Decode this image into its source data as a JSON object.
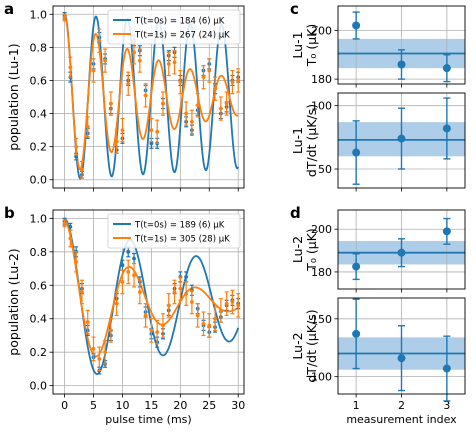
{
  "chart_data": [
    {
      "id": "a",
      "type": "line",
      "panel_letter": "a",
      "ylabel": "population (Lu-1)",
      "xlabel": "",
      "xlim": [
        -2,
        31
      ],
      "ylim": [
        -0.05,
        1.05
      ],
      "xticks": [
        0,
        5,
        10,
        15,
        20,
        25,
        30
      ],
      "xtick_labels": [
        "",
        "",
        "",
        "",
        "",
        "",
        ""
      ],
      "yticks": [
        0.0,
        0.2,
        0.4,
        0.6,
        0.8,
        1.0
      ],
      "ytick_labels": [
        "0.0",
        "0.2",
        "0.4",
        "0.6",
        "0.8",
        "1.0"
      ],
      "grid": true,
      "legend_position": "top-right",
      "legend_labels": [
        "T(t=0s) = 184 (6) μK",
        "T(t=1s) = 267 (24) μK"
      ],
      "series": [
        {
          "name": "T(t=0s) = 184 (6) μK",
          "color": "#1f77b4",
          "fit": {
            "freq_ms": 0.1843,
            "decay_ms": 200,
            "amp": 0.5,
            "offset": 0.5
          },
          "points": {
            "x": [
              0,
              1,
              2,
              3,
              4,
              5,
              6,
              7,
              8,
              9,
              10,
              11,
              12,
              13,
              14,
              15,
              16,
              17,
              18,
              19,
              20,
              21,
              22,
              23,
              24,
              25,
              26,
              27,
              28,
              29,
              30
            ],
            "y": [
              0.99,
              0.62,
              0.14,
              0.03,
              0.28,
              0.7,
              0.86,
              0.73,
              0.43,
              0.18,
              0.25,
              0.6,
              0.84,
              0.78,
              0.54,
              0.22,
              0.22,
              0.46,
              0.75,
              0.77,
              0.6,
              0.35,
              0.3,
              0.42,
              0.66,
              0.7,
              0.55,
              0.4,
              0.44,
              0.6,
              0.62
            ],
            "err": [
              0.02,
              0.03,
              0.02,
              0.02,
              0.03,
              0.03,
              0.03,
              0.03,
              0.03,
              0.02,
              0.03,
              0.03,
              0.03,
              0.03,
              0.03,
              0.03,
              0.03,
              0.03,
              0.03,
              0.03,
              0.03,
              0.03,
              0.03,
              0.03,
              0.03,
              0.03,
              0.03,
              0.03,
              0.03,
              0.03,
              0.03
            ]
          }
        },
        {
          "name": "T(t=1s) = 267 (24) μK",
          "color": "#ff7f0e",
          "fit": {
            "freq_ms": 0.1843,
            "decay_ms": 20,
            "amp": 0.5,
            "offset": 0.5
          },
          "points": {
            "x": [
              0,
              1,
              2,
              3,
              4,
              5,
              6,
              7,
              8,
              9,
              10,
              11,
              12,
              13,
              14,
              15,
              16,
              17,
              18,
              19,
              20,
              21,
              22,
              23,
              24,
              25,
              26,
              27,
              28,
              29,
              30
            ],
            "y": [
              0.98,
              0.68,
              0.2,
              0.06,
              0.32,
              0.66,
              0.84,
              0.72,
              0.46,
              0.23,
              0.3,
              0.58,
              0.77,
              0.72,
              0.51,
              0.3,
              0.29,
              0.46,
              0.7,
              0.71,
              0.59,
              0.4,
              0.35,
              0.45,
              0.62,
              0.66,
              0.55,
              0.43,
              0.46,
              0.59,
              0.6
            ],
            "err": [
              0.02,
              0.06,
              0.05,
              0.05,
              0.06,
              0.07,
              0.07,
              0.07,
              0.07,
              0.07,
              0.07,
              0.07,
              0.07,
              0.07,
              0.07,
              0.07,
              0.07,
              0.07,
              0.07,
              0.07,
              0.07,
              0.07,
              0.07,
              0.07,
              0.07,
              0.07,
              0.07,
              0.07,
              0.07,
              0.07,
              0.07
            ]
          }
        }
      ]
    },
    {
      "id": "b",
      "type": "line",
      "panel_letter": "b",
      "ylabel": "population (Lu-2)",
      "xlabel": "pulse time (ms)",
      "xlim": [
        -2,
        31
      ],
      "ylim": [
        -0.05,
        1.05
      ],
      "xticks": [
        0,
        5,
        10,
        15,
        20,
        25,
        30
      ],
      "xtick_labels": [
        "0",
        "5",
        "10",
        "15",
        "20",
        "25",
        "30"
      ],
      "yticks": [
        0.0,
        0.2,
        0.4,
        0.6,
        0.8,
        1.0
      ],
      "ytick_labels": [
        "0.0",
        "0.2",
        "0.4",
        "0.6",
        "0.8",
        "1.0"
      ],
      "grid": true,
      "legend_position": "top-right",
      "legend_labels": [
        "T(t=0s) = 189 (6) μK",
        "T(t=1s) = 305 (28) μK"
      ],
      "series": [
        {
          "name": "T(t=0s) = 189 (6) μK",
          "color": "#1f77b4",
          "fit": {
            "freq_ms": 0.0877,
            "decay_ms": 38,
            "amp": 0.5,
            "offset": 0.5
          },
          "points": {
            "x": [
              0,
              1,
              2,
              3,
              4,
              5,
              6,
              7,
              8,
              9,
              10,
              11,
              12,
              13,
              14,
              15,
              16,
              17,
              18,
              19,
              20,
              21,
              22,
              23,
              24,
              25,
              26,
              27,
              28,
              29,
              30
            ],
            "y": [
              0.98,
              0.95,
              0.8,
              0.58,
              0.33,
              0.17,
              0.09,
              0.13,
              0.3,
              0.52,
              0.72,
              0.8,
              0.76,
              0.62,
              0.44,
              0.31,
              0.26,
              0.31,
              0.45,
              0.58,
              0.65,
              0.65,
              0.57,
              0.46,
              0.36,
              0.32,
              0.35,
              0.41,
              0.48,
              0.51,
              0.49
            ],
            "err": [
              0.02,
              0.02,
              0.03,
              0.03,
              0.03,
              0.02,
              0.02,
              0.02,
              0.03,
              0.03,
              0.03,
              0.03,
              0.03,
              0.03,
              0.03,
              0.03,
              0.03,
              0.03,
              0.03,
              0.03,
              0.03,
              0.03,
              0.03,
              0.03,
              0.03,
              0.03,
              0.03,
              0.03,
              0.03,
              0.03,
              0.03
            ]
          }
        },
        {
          "name": "T(t=1s) = 305 (28) μK",
          "color": "#ff7f0e",
          "fit": {
            "freq_ms": 0.0877,
            "decay_ms": 13,
            "amp": 0.5,
            "offset": 0.5
          },
          "points": {
            "x": [
              0,
              1,
              2,
              3,
              4,
              5,
              6,
              7,
              8,
              9,
              10,
              11,
              12,
              13,
              14,
              15,
              16,
              17,
              18,
              19,
              20,
              21,
              22,
              23,
              24,
              25,
              26,
              27,
              28,
              29,
              30
            ],
            "y": [
              0.97,
              0.88,
              0.74,
              0.56,
              0.38,
              0.22,
              0.16,
              0.2,
              0.33,
              0.49,
              0.62,
              0.68,
              0.66,
              0.56,
              0.42,
              0.33,
              0.32,
              0.36,
              0.48,
              0.56,
              0.58,
              0.55,
              0.5,
              0.42,
              0.37,
              0.36,
              0.4,
              0.45,
              0.49,
              0.5,
              0.48
            ],
            "err": [
              0.02,
              0.05,
              0.06,
              0.07,
              0.07,
              0.07,
              0.07,
              0.07,
              0.07,
              0.07,
              0.07,
              0.07,
              0.07,
              0.07,
              0.07,
              0.07,
              0.07,
              0.07,
              0.07,
              0.07,
              0.07,
              0.07,
              0.07,
              0.07,
              0.07,
              0.07,
              0.07,
              0.07,
              0.07,
              0.07,
              0.07
            ]
          }
        }
      ]
    },
    {
      "id": "c1",
      "type": "scatter",
      "panel_letter": "c",
      "ylabel_lines": [
        "Lu-1",
        "T₀ (μK)"
      ],
      "xlabel": "",
      "xlim": [
        0.6,
        3.4
      ],
      "ylim": [
        178,
        210
      ],
      "xticks": [
        1,
        2,
        3
      ],
      "xtick_labels": [
        "",
        "",
        ""
      ],
      "yticks": [
        180,
        200
      ],
      "ytick_labels": [
        "180",
        "200"
      ],
      "grid": true,
      "mean": 190.5,
      "band": [
        184.5,
        196.5
      ],
      "color": "#1f77b4",
      "band_color": "#aecde8",
      "points": {
        "x": [
          1,
          2,
          3
        ],
        "y": [
          202,
          186,
          184.5
        ],
        "err": [
          5.5,
          6,
          5.5
        ]
      }
    },
    {
      "id": "c2",
      "type": "scatter",
      "panel_letter": "",
      "ylabel_lines": [
        "Lu-1",
        "dT/dt (μK/s)"
      ],
      "xlabel": "",
      "xlim": [
        0.6,
        3.4
      ],
      "ylim": [
        35,
        110
      ],
      "xticks": [
        1,
        2,
        3
      ],
      "xtick_labels": [
        "",
        "",
        ""
      ],
      "yticks": [
        50,
        100
      ],
      "ytick_labels": [
        "50",
        "100"
      ],
      "grid": true,
      "mean": 73,
      "band": [
        60,
        87
      ],
      "color": "#1f77b4",
      "band_color": "#aecde8",
      "points": {
        "x": [
          1,
          2,
          3
        ],
        "y": [
          63,
          74,
          82
        ],
        "err": [
          25,
          24,
          24
        ]
      }
    },
    {
      "id": "d1",
      "type": "scatter",
      "panel_letter": "d",
      "ylabel_lines": [
        "Lu-2",
        "T₀ (μK)"
      ],
      "xlabel": "",
      "xlim": [
        0.6,
        3.4
      ],
      "ylim": [
        172,
        209
      ],
      "xticks": [
        1,
        2,
        3
      ],
      "xtick_labels": [
        "",
        "",
        ""
      ],
      "yticks": [
        180,
        200
      ],
      "ytick_labels": [
        "180",
        "200"
      ],
      "grid": true,
      "mean": 189,
      "band": [
        183.5,
        194.5
      ],
      "color": "#1f77b4",
      "band_color": "#aecde8",
      "points": {
        "x": [
          1,
          2,
          3
        ],
        "y": [
          182.5,
          189,
          199
        ],
        "err": [
          6,
          6.5,
          6
        ]
      }
    },
    {
      "id": "d2",
      "type": "scatter",
      "panel_letter": "",
      "ylabel_lines": [
        "Lu-2",
        "dT/dt (μK/s)"
      ],
      "xlabel": "measurement index",
      "xlim": [
        0.6,
        3.4
      ],
      "ylim": [
        85,
        168
      ],
      "xticks": [
        1,
        2,
        3
      ],
      "xtick_labels": [
        "1",
        "2",
        "3"
      ],
      "yticks": [
        100,
        150
      ],
      "ytick_labels": [
        "100",
        "150"
      ],
      "grid": true,
      "mean": 120,
      "band": [
        106,
        134
      ],
      "color": "#1f77b4",
      "band_color": "#aecde8",
      "points": {
        "x": [
          1,
          2,
          3
        ],
        "y": [
          137,
          116,
          107
        ],
        "err": [
          30,
          28,
          28
        ]
      }
    }
  ]
}
